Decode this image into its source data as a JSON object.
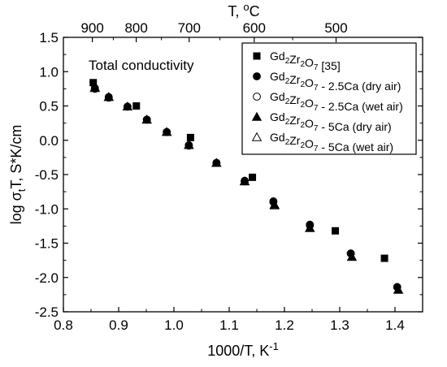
{
  "chart_data": {
    "type": "scatter",
    "annotation": "Total conductivity",
    "xlabel": {
      "main": "1000/T, K",
      "sup": "-1"
    },
    "ylabel": {
      "pre": "log σ",
      "sub": "t",
      "post": "T, S*K/cm"
    },
    "top_axis": {
      "label": "T, ",
      "sup": "o",
      "unit": "C",
      "ticks": [
        "900",
        "800",
        "700",
        "600",
        "500"
      ],
      "tick_values_C": [
        900,
        800,
        700,
        600,
        500
      ]
    },
    "xlim": [
      0.8,
      1.45
    ],
    "ylim": [
      -2.5,
      1.5
    ],
    "x_ticks": [
      "0.8",
      "0.9",
      "1.0",
      "1.1",
      "1.2",
      "1.3",
      "1.4"
    ],
    "x_tick_values": [
      0.8,
      0.9,
      1.0,
      1.1,
      1.2,
      1.3,
      1.4
    ],
    "y_ticks": [
      "-2.5",
      "-2.0",
      "-1.5",
      "-1.0",
      "-0.5",
      "0.0",
      "0.5",
      "1.0",
      "1.5"
    ],
    "y_tick_values": [
      -2.5,
      -2.0,
      -1.5,
      -1.0,
      -0.5,
      0.0,
      0.5,
      1.0,
      1.5
    ],
    "grid": false,
    "legend_position": "top-right",
    "series": [
      {
        "name": "Gd2Zr2O7 [35]",
        "legend": {
          "parts": [
            [
              "Gd",
              ""
            ],
            [
              "2",
              "sub"
            ],
            [
              "Zr",
              ""
            ],
            [
              "2",
              "sub"
            ],
            [
              "O",
              ""
            ],
            [
              "7",
              "sub"
            ],
            [
              " [35]",
              ""
            ]
          ]
        },
        "marker": "square-filled",
        "points": [
          [
            0.854,
            0.84
          ],
          [
            0.932,
            0.5
          ],
          [
            1.03,
            0.04
          ],
          [
            1.142,
            -0.54
          ],
          [
            1.292,
            -1.32
          ],
          [
            1.381,
            -1.72
          ]
        ]
      },
      {
        "name": "Gd2Zr2O7 - 2.5Ca (dry air)",
        "legend": {
          "parts": [
            [
              "Gd",
              ""
            ],
            [
              "2",
              "sub"
            ],
            [
              "Zr",
              ""
            ],
            [
              "2",
              "sub"
            ],
            [
              "O",
              ""
            ],
            [
              "7",
              "sub"
            ],
            [
              " - 2.5Ca (dry air)",
              ""
            ]
          ]
        },
        "marker": "circle-filled",
        "points": [
          [
            0.857,
            0.76
          ],
          [
            0.882,
            0.63
          ],
          [
            0.916,
            0.49
          ],
          [
            0.951,
            0.3
          ],
          [
            0.987,
            0.12
          ],
          [
            1.027,
            -0.07
          ],
          [
            1.077,
            -0.33
          ],
          [
            1.128,
            -0.59
          ],
          [
            1.18,
            -0.9
          ],
          [
            1.246,
            -1.24
          ],
          [
            1.32,
            -1.65
          ],
          [
            1.404,
            -2.14
          ]
        ]
      },
      {
        "name": "Gd2Zr2O7 - 2.5Ca (wet air)",
        "legend": {
          "parts": [
            [
              "Gd",
              ""
            ],
            [
              "2",
              "sub"
            ],
            [
              "Zr",
              ""
            ],
            [
              "2",
              "sub"
            ],
            [
              "O",
              ""
            ],
            [
              "7",
              "sub"
            ],
            [
              " - 2.5Ca (wet air)",
              ""
            ]
          ]
        },
        "marker": "circle-open",
        "points": [
          [
            0.857,
            0.75
          ],
          [
            0.882,
            0.62
          ],
          [
            0.916,
            0.49
          ],
          [
            0.951,
            0.3
          ],
          [
            0.987,
            0.12
          ],
          [
            1.027,
            -0.08
          ],
          [
            1.077,
            -0.33
          ],
          [
            1.128,
            -0.6
          ],
          [
            1.18,
            -0.89
          ],
          [
            1.246,
            -1.23
          ],
          [
            1.32,
            -1.65
          ],
          [
            1.404,
            -2.14
          ]
        ]
      },
      {
        "name": "Gd2Zr2O7 - 5Ca (dry air)",
        "legend": {
          "parts": [
            [
              "Gd",
              ""
            ],
            [
              "2",
              "sub"
            ],
            [
              "Zr",
              ""
            ],
            [
              "2",
              "sub"
            ],
            [
              "O",
              ""
            ],
            [
              "7",
              "sub"
            ],
            [
              " - 5Ca (dry air)",
              ""
            ]
          ]
        },
        "marker": "triangle-filled",
        "points": [
          [
            0.857,
            0.77
          ],
          [
            0.882,
            0.63
          ],
          [
            0.916,
            0.49
          ],
          [
            0.951,
            0.3
          ],
          [
            0.987,
            0.12
          ],
          [
            1.027,
            -0.07
          ],
          [
            1.077,
            -0.33
          ],
          [
            1.128,
            -0.6
          ],
          [
            1.182,
            -0.94
          ],
          [
            1.246,
            -1.28
          ],
          [
            1.322,
            -1.7
          ],
          [
            1.406,
            -2.18
          ]
        ]
      },
      {
        "name": "Gd2Zr2O7 - 5Ca (wet air)",
        "legend": {
          "parts": [
            [
              "Gd",
              ""
            ],
            [
              "2",
              "sub"
            ],
            [
              "Zr",
              ""
            ],
            [
              "2",
              "sub"
            ],
            [
              "O",
              ""
            ],
            [
              "7",
              "sub"
            ],
            [
              " - 5Ca (wet air)",
              ""
            ]
          ]
        },
        "marker": "triangle-open",
        "points": [
          [
            0.857,
            0.76
          ],
          [
            0.882,
            0.63
          ],
          [
            0.916,
            0.49
          ],
          [
            0.951,
            0.3
          ],
          [
            0.987,
            0.12
          ],
          [
            1.027,
            -0.07
          ],
          [
            1.077,
            -0.33
          ],
          [
            1.128,
            -0.6
          ],
          [
            1.182,
            -0.95
          ],
          [
            1.246,
            -1.28
          ],
          [
            1.322,
            -1.7
          ],
          [
            1.406,
            -2.18
          ]
        ]
      }
    ]
  }
}
